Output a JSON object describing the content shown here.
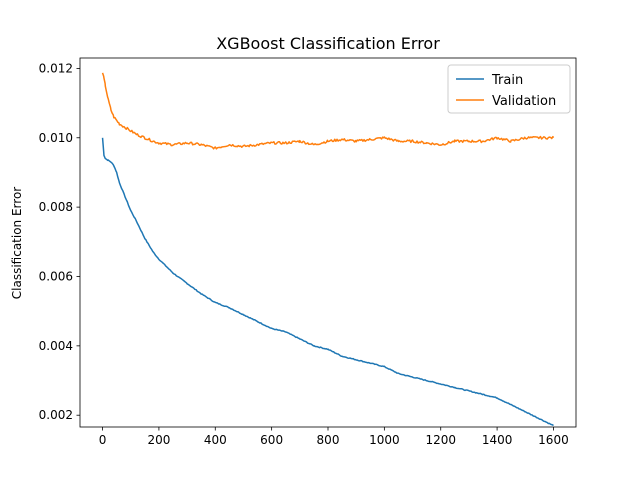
{
  "chart_data": {
    "type": "line",
    "title": "XGBoost Classification Error",
    "xlabel": "",
    "ylabel": "Classification Error",
    "xlim": [
      -80,
      1680
    ],
    "ylim": [
      0.00166,
      0.0123
    ],
    "xticks": [
      0,
      200,
      400,
      600,
      800,
      1000,
      1200,
      1400,
      1600
    ],
    "xtick_labels": [
      "0",
      "200",
      "400",
      "600",
      "800",
      "1000",
      "1200",
      "1400",
      "1600"
    ],
    "yticks": [
      0.002,
      0.004,
      0.006,
      0.008,
      0.01,
      0.012
    ],
    "ytick_labels": [
      "0.002",
      "0.004",
      "0.006",
      "0.008",
      "0.010",
      "0.012"
    ],
    "grid": false,
    "legend_position": "top-right",
    "series": [
      {
        "name": "Train",
        "color": "#1f77b4",
        "x": [
          0,
          5,
          10,
          20,
          30,
          40,
          50,
          60,
          80,
          100,
          120,
          150,
          180,
          200,
          250,
          300,
          350,
          400,
          450,
          500,
          550,
          600,
          650,
          700,
          750,
          800,
          850,
          900,
          950,
          1000,
          1050,
          1100,
          1150,
          1200,
          1250,
          1300,
          1350,
          1400,
          1450,
          1500,
          1550,
          1600
        ],
        "y": [
          0.01,
          0.0095,
          0.0094,
          0.00935,
          0.0093,
          0.0092,
          0.009,
          0.0087,
          0.0083,
          0.0079,
          0.0076,
          0.0071,
          0.0067,
          0.0065,
          0.0061,
          0.0058,
          0.0055,
          0.00525,
          0.0051,
          0.0049,
          0.0047,
          0.0045,
          0.0044,
          0.0042,
          0.004,
          0.0039,
          0.0037,
          0.0036,
          0.0035,
          0.0034,
          0.0032,
          0.0031,
          0.003,
          0.0029,
          0.0028,
          0.0027,
          0.0026,
          0.0025,
          0.0023,
          0.0021,
          0.0019,
          0.0017
        ]
      },
      {
        "name": "Validation",
        "color": "#ff7f0e",
        "x": [
          0,
          5,
          10,
          20,
          30,
          40,
          50,
          60,
          80,
          100,
          120,
          150,
          180,
          200,
          250,
          300,
          350,
          400,
          450,
          500,
          550,
          600,
          650,
          700,
          750,
          800,
          850,
          900,
          950,
          1000,
          1050,
          1100,
          1150,
          1200,
          1250,
          1300,
          1350,
          1400,
          1450,
          1500,
          1550,
          1600
        ],
        "y": [
          0.0119,
          0.0117,
          0.0115,
          0.0111,
          0.0108,
          0.0106,
          0.0105,
          0.0104,
          0.0103,
          0.0102,
          0.0101,
          0.01,
          0.0099,
          0.00985,
          0.0098,
          0.00985,
          0.0098,
          0.0097,
          0.0098,
          0.00975,
          0.0098,
          0.00985,
          0.00985,
          0.0099,
          0.0098,
          0.0099,
          0.00995,
          0.0099,
          0.00995,
          0.01,
          0.0099,
          0.0099,
          0.00985,
          0.0098,
          0.0099,
          0.0099,
          0.0099,
          0.01,
          0.0099,
          0.01,
          0.01,
          0.01
        ]
      }
    ]
  }
}
